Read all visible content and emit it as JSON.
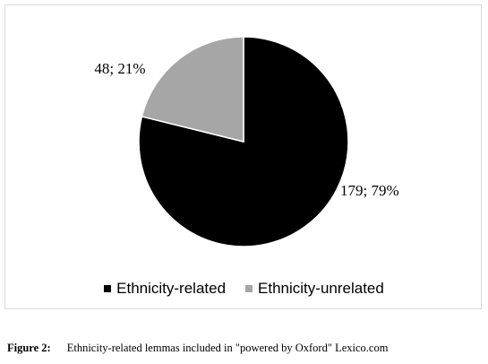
{
  "chart_data": {
    "type": "pie",
    "categories": [
      "Ethnicity-related",
      "Ethnicity-unrelated"
    ],
    "values": [
      179,
      48
    ],
    "percentages": [
      79,
      21
    ],
    "data_labels": [
      "179; 79%",
      "48; 21%"
    ],
    "colors": [
      "#000000",
      "#a6a6a6"
    ],
    "legend_position": "bottom"
  },
  "legend": {
    "items": [
      {
        "label": "Ethnicity-related",
        "color": "#000000"
      },
      {
        "label": "Ethnicity-unrelated",
        "color": "#a6a6a6"
      }
    ]
  },
  "caption": {
    "label": "Figure 2:",
    "text": "Ethnicity-related lemmas included in \"powered by Oxford\" Lexico.com"
  }
}
